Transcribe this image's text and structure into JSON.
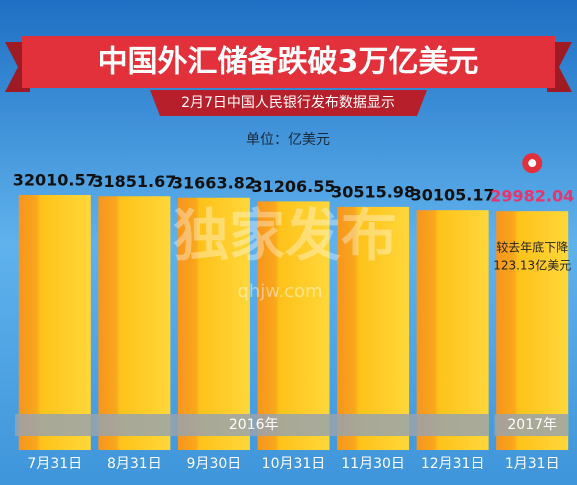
{
  "chart_data": {
    "type": "bar",
    "title": "中国外汇储备跌破3万亿美元",
    "subtitle": "2月7日中国人民银行发布数据显示",
    "unit": "单位：亿美元",
    "categories": [
      "7月31日",
      "8月31日",
      "9月30日",
      "10月31日",
      "11月30日",
      "12月31日",
      "1月31日"
    ],
    "values": [
      32010.57,
      31851.67,
      31663.82,
      31206.55,
      30515.98,
      30105.17,
      29982.04
    ],
    "year_groups": [
      "2016年",
      "2017年"
    ],
    "annotation": [
      "较去年底下降",
      "123.13亿美元"
    ],
    "watermark": [
      "独家发布",
      "qhjw.com"
    ]
  }
}
